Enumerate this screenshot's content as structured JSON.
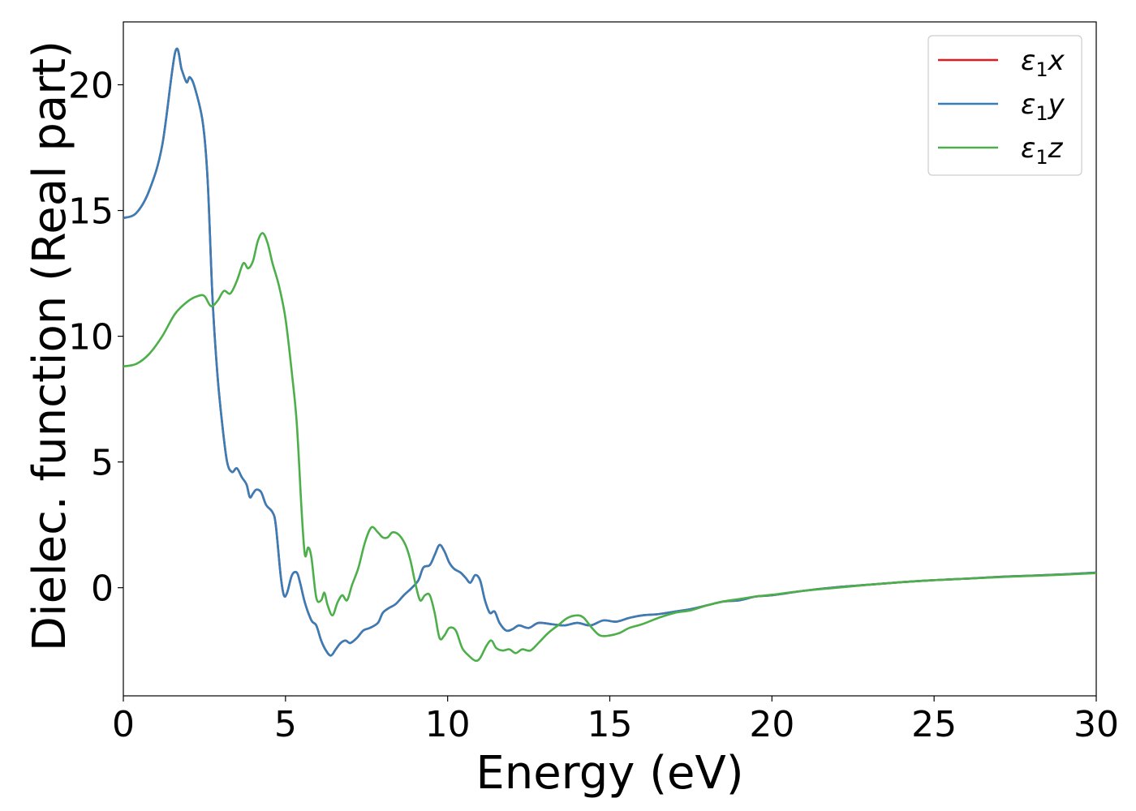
{
  "chart_data": {
    "type": "line",
    "xlabel": "Energy (eV)",
    "ylabel": "Dielec. function (Real part)",
    "xlim": [
      0,
      30
    ],
    "ylim": [
      -4.3,
      22.5
    ],
    "x_ticks": [
      0,
      5,
      10,
      15,
      20,
      25,
      30
    ],
    "y_ticks": [
      0,
      5,
      10,
      15,
      20
    ],
    "grid": false,
    "legend_position": "top-right",
    "series": [
      {
        "name": "ε1x",
        "legend_base": "ε",
        "legend_sub": "1",
        "legend_suffix": "x",
        "color": "#e41a1c",
        "points": [
          [
            0,
            14.7
          ],
          [
            0.4,
            14.9
          ],
          [
            0.8,
            15.8
          ],
          [
            1.2,
            17.6
          ],
          [
            1.6,
            21.3
          ],
          [
            1.8,
            20.6
          ],
          [
            1.95,
            20.1
          ],
          [
            2.05,
            20.3
          ],
          [
            2.2,
            19.9
          ],
          [
            2.45,
            18.5
          ],
          [
            2.6,
            16.2
          ],
          [
            2.75,
            11.5
          ],
          [
            2.9,
            8.5
          ],
          [
            3.05,
            6.5
          ],
          [
            3.2,
            5.0
          ],
          [
            3.35,
            4.6
          ],
          [
            3.5,
            4.75
          ],
          [
            3.65,
            4.4
          ],
          [
            3.8,
            4.1
          ],
          [
            3.9,
            3.6
          ],
          [
            4.0,
            3.75
          ],
          [
            4.1,
            3.9
          ],
          [
            4.25,
            3.8
          ],
          [
            4.4,
            3.3
          ],
          [
            4.6,
            3.0
          ],
          [
            4.7,
            2.5
          ],
          [
            4.85,
            0.5
          ],
          [
            4.95,
            -0.3
          ],
          [
            5.05,
            -0.2
          ],
          [
            5.2,
            0.5
          ],
          [
            5.35,
            0.6
          ],
          [
            5.45,
            0.2
          ],
          [
            5.6,
            -0.6
          ],
          [
            5.8,
            -1.3
          ],
          [
            5.95,
            -1.5
          ],
          [
            6.1,
            -2.1
          ],
          [
            6.25,
            -2.5
          ],
          [
            6.4,
            -2.7
          ],
          [
            6.55,
            -2.45
          ],
          [
            6.7,
            -2.2
          ],
          [
            6.85,
            -2.1
          ],
          [
            7.0,
            -2.2
          ],
          [
            7.2,
            -2.0
          ],
          [
            7.4,
            -1.7
          ],
          [
            7.6,
            -1.6
          ],
          [
            7.85,
            -1.4
          ],
          [
            8.0,
            -1.0
          ],
          [
            8.2,
            -0.8
          ],
          [
            8.4,
            -0.65
          ],
          [
            8.65,
            -0.3
          ],
          [
            8.9,
            0.0
          ],
          [
            9.1,
            0.3
          ],
          [
            9.25,
            0.8
          ],
          [
            9.45,
            0.9
          ],
          [
            9.6,
            1.3
          ],
          [
            9.75,
            1.7
          ],
          [
            9.9,
            1.45
          ],
          [
            10.05,
            1.0
          ],
          [
            10.2,
            0.75
          ],
          [
            10.4,
            0.6
          ],
          [
            10.55,
            0.4
          ],
          [
            10.7,
            0.2
          ],
          [
            10.85,
            0.5
          ],
          [
            11.0,
            0.3
          ],
          [
            11.15,
            -0.5
          ],
          [
            11.3,
            -1.0
          ],
          [
            11.45,
            -0.95
          ],
          [
            11.6,
            -1.4
          ],
          [
            11.8,
            -1.7
          ],
          [
            12.0,
            -1.65
          ],
          [
            12.2,
            -1.5
          ],
          [
            12.5,
            -1.6
          ],
          [
            12.8,
            -1.4
          ],
          [
            13.2,
            -1.45
          ],
          [
            13.6,
            -1.5
          ],
          [
            14.0,
            -1.4
          ],
          [
            14.4,
            -1.5
          ],
          [
            14.8,
            -1.3
          ],
          [
            15.2,
            -1.35
          ],
          [
            15.6,
            -1.2
          ],
          [
            16.0,
            -1.1
          ],
          [
            16.5,
            -1.05
          ],
          [
            17.0,
            -0.95
          ],
          [
            17.5,
            -0.85
          ],
          [
            18.0,
            -0.7
          ],
          [
            18.5,
            -0.55
          ],
          [
            19.0,
            -0.5
          ],
          [
            19.5,
            -0.35
          ],
          [
            20.0,
            -0.3
          ],
          [
            21.0,
            -0.12
          ],
          [
            22.0,
            0.02
          ],
          [
            23.0,
            0.12
          ],
          [
            24.0,
            0.22
          ],
          [
            25.0,
            0.3
          ],
          [
            26.0,
            0.36
          ],
          [
            27.0,
            0.43
          ],
          [
            28.0,
            0.48
          ],
          [
            29.0,
            0.53
          ],
          [
            30.0,
            0.6
          ]
        ]
      },
      {
        "name": "ε1y",
        "legend_base": "ε",
        "legend_sub": "1",
        "legend_suffix": "y",
        "color": "#377eb8",
        "points": [
          [
            0,
            14.7
          ],
          [
            0.4,
            14.9
          ],
          [
            0.8,
            15.8
          ],
          [
            1.2,
            17.6
          ],
          [
            1.6,
            21.3
          ],
          [
            1.8,
            20.6
          ],
          [
            1.95,
            20.1
          ],
          [
            2.05,
            20.3
          ],
          [
            2.2,
            19.9
          ],
          [
            2.45,
            18.5
          ],
          [
            2.6,
            16.2
          ],
          [
            2.75,
            11.5
          ],
          [
            2.9,
            8.5
          ],
          [
            3.05,
            6.5
          ],
          [
            3.2,
            5.0
          ],
          [
            3.35,
            4.6
          ],
          [
            3.5,
            4.75
          ],
          [
            3.65,
            4.4
          ],
          [
            3.8,
            4.1
          ],
          [
            3.9,
            3.6
          ],
          [
            4.0,
            3.75
          ],
          [
            4.1,
            3.9
          ],
          [
            4.25,
            3.8
          ],
          [
            4.4,
            3.3
          ],
          [
            4.6,
            3.0
          ],
          [
            4.7,
            2.5
          ],
          [
            4.85,
            0.5
          ],
          [
            4.95,
            -0.3
          ],
          [
            5.05,
            -0.2
          ],
          [
            5.2,
            0.5
          ],
          [
            5.35,
            0.6
          ],
          [
            5.45,
            0.2
          ],
          [
            5.6,
            -0.6
          ],
          [
            5.8,
            -1.3
          ],
          [
            5.95,
            -1.5
          ],
          [
            6.1,
            -2.1
          ],
          [
            6.25,
            -2.5
          ],
          [
            6.4,
            -2.7
          ],
          [
            6.55,
            -2.45
          ],
          [
            6.7,
            -2.2
          ],
          [
            6.85,
            -2.1
          ],
          [
            7.0,
            -2.2
          ],
          [
            7.2,
            -2.0
          ],
          [
            7.4,
            -1.7
          ],
          [
            7.6,
            -1.6
          ],
          [
            7.85,
            -1.4
          ],
          [
            8.0,
            -1.0
          ],
          [
            8.2,
            -0.8
          ],
          [
            8.4,
            -0.65
          ],
          [
            8.65,
            -0.3
          ],
          [
            8.9,
            0.0
          ],
          [
            9.1,
            0.3
          ],
          [
            9.25,
            0.8
          ],
          [
            9.45,
            0.9
          ],
          [
            9.6,
            1.3
          ],
          [
            9.75,
            1.7
          ],
          [
            9.9,
            1.45
          ],
          [
            10.05,
            1.0
          ],
          [
            10.2,
            0.75
          ],
          [
            10.4,
            0.6
          ],
          [
            10.55,
            0.4
          ],
          [
            10.7,
            0.2
          ],
          [
            10.85,
            0.5
          ],
          [
            11.0,
            0.3
          ],
          [
            11.15,
            -0.5
          ],
          [
            11.3,
            -1.0
          ],
          [
            11.45,
            -0.95
          ],
          [
            11.6,
            -1.4
          ],
          [
            11.8,
            -1.7
          ],
          [
            12.0,
            -1.65
          ],
          [
            12.2,
            -1.5
          ],
          [
            12.5,
            -1.6
          ],
          [
            12.8,
            -1.4
          ],
          [
            13.2,
            -1.45
          ],
          [
            13.6,
            -1.5
          ],
          [
            14.0,
            -1.4
          ],
          [
            14.4,
            -1.5
          ],
          [
            14.8,
            -1.3
          ],
          [
            15.2,
            -1.35
          ],
          [
            15.6,
            -1.2
          ],
          [
            16.0,
            -1.1
          ],
          [
            16.5,
            -1.05
          ],
          [
            17.0,
            -0.95
          ],
          [
            17.5,
            -0.85
          ],
          [
            18.0,
            -0.7
          ],
          [
            18.5,
            -0.55
          ],
          [
            19.0,
            -0.5
          ],
          [
            19.5,
            -0.35
          ],
          [
            20.0,
            -0.3
          ],
          [
            21.0,
            -0.12
          ],
          [
            22.0,
            0.02
          ],
          [
            23.0,
            0.12
          ],
          [
            24.0,
            0.22
          ],
          [
            25.0,
            0.3
          ],
          [
            26.0,
            0.36
          ],
          [
            27.0,
            0.43
          ],
          [
            28.0,
            0.48
          ],
          [
            29.0,
            0.53
          ],
          [
            30.0,
            0.6
          ]
        ]
      },
      {
        "name": "ε1z",
        "legend_base": "ε",
        "legend_sub": "1",
        "legend_suffix": "z",
        "color": "#4daf4a",
        "points": [
          [
            0,
            8.8
          ],
          [
            0.4,
            8.9
          ],
          [
            0.8,
            9.3
          ],
          [
            1.2,
            10.0
          ],
          [
            1.6,
            10.9
          ],
          [
            2.0,
            11.4
          ],
          [
            2.3,
            11.6
          ],
          [
            2.5,
            11.6
          ],
          [
            2.7,
            11.2
          ],
          [
            2.9,
            11.4
          ],
          [
            3.1,
            11.8
          ],
          [
            3.3,
            11.7
          ],
          [
            3.5,
            12.2
          ],
          [
            3.7,
            12.9
          ],
          [
            3.85,
            12.7
          ],
          [
            4.0,
            13.0
          ],
          [
            4.15,
            13.8
          ],
          [
            4.3,
            14.1
          ],
          [
            4.45,
            13.7
          ],
          [
            4.6,
            12.9
          ],
          [
            4.8,
            12.0
          ],
          [
            5.0,
            10.7
          ],
          [
            5.2,
            8.5
          ],
          [
            5.35,
            6.5
          ],
          [
            5.5,
            3.0
          ],
          [
            5.6,
            1.3
          ],
          [
            5.7,
            1.6
          ],
          [
            5.8,
            1.2
          ],
          [
            5.95,
            -0.4
          ],
          [
            6.1,
            -0.5
          ],
          [
            6.2,
            -0.2
          ],
          [
            6.3,
            -0.7
          ],
          [
            6.45,
            -1.1
          ],
          [
            6.6,
            -0.6
          ],
          [
            6.75,
            -0.3
          ],
          [
            6.9,
            -0.5
          ],
          [
            7.05,
            0.1
          ],
          [
            7.25,
            0.8
          ],
          [
            7.45,
            1.8
          ],
          [
            7.65,
            2.4
          ],
          [
            7.85,
            2.2
          ],
          [
            8.0,
            2.0
          ],
          [
            8.15,
            2.0
          ],
          [
            8.3,
            2.2
          ],
          [
            8.5,
            2.1
          ],
          [
            8.7,
            1.7
          ],
          [
            8.85,
            1.1
          ],
          [
            9.0,
            0.2
          ],
          [
            9.15,
            -0.5
          ],
          [
            9.3,
            -0.3
          ],
          [
            9.45,
            -0.3
          ],
          [
            9.6,
            -1.0
          ],
          [
            9.75,
            -2.0
          ],
          [
            9.9,
            -1.9
          ],
          [
            10.05,
            -1.6
          ],
          [
            10.25,
            -1.7
          ],
          [
            10.45,
            -2.4
          ],
          [
            10.65,
            -2.7
          ],
          [
            10.85,
            -2.9
          ],
          [
            11.0,
            -2.8
          ],
          [
            11.2,
            -2.3
          ],
          [
            11.35,
            -2.1
          ],
          [
            11.5,
            -2.4
          ],
          [
            11.7,
            -2.5
          ],
          [
            11.9,
            -2.45
          ],
          [
            12.1,
            -2.6
          ],
          [
            12.3,
            -2.45
          ],
          [
            12.55,
            -2.5
          ],
          [
            12.8,
            -2.2
          ],
          [
            13.1,
            -1.8
          ],
          [
            13.4,
            -1.5
          ],
          [
            13.7,
            -1.2
          ],
          [
            14.0,
            -1.1
          ],
          [
            14.2,
            -1.2
          ],
          [
            14.45,
            -1.6
          ],
          [
            14.7,
            -1.9
          ],
          [
            15.0,
            -1.9
          ],
          [
            15.3,
            -1.8
          ],
          [
            15.6,
            -1.6
          ],
          [
            16.0,
            -1.45
          ],
          [
            16.5,
            -1.2
          ],
          [
            17.0,
            -1.0
          ],
          [
            17.5,
            -0.9
          ],
          [
            18.0,
            -0.7
          ],
          [
            18.5,
            -0.55
          ],
          [
            19.0,
            -0.45
          ],
          [
            19.5,
            -0.35
          ],
          [
            20.0,
            -0.28
          ],
          [
            21.0,
            -0.12
          ],
          [
            22.0,
            0.0
          ],
          [
            23.0,
            0.12
          ],
          [
            24.0,
            0.22
          ],
          [
            25.0,
            0.3
          ],
          [
            26.0,
            0.36
          ],
          [
            27.0,
            0.42
          ],
          [
            28.0,
            0.47
          ],
          [
            29.0,
            0.52
          ],
          [
            30.0,
            0.58
          ]
        ]
      }
    ]
  }
}
